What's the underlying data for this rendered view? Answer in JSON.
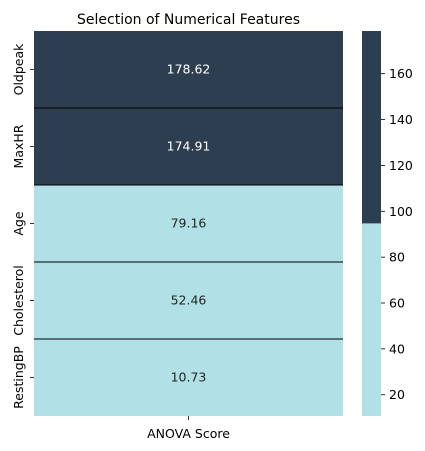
{
  "chart_data": {
    "type": "heatmap",
    "title": "Selection of Numerical Features",
    "xlabel": "",
    "ylabel": "",
    "columns": [
      "ANOVA Score"
    ],
    "rows": [
      "Oldpeak",
      "MaxHR",
      "Age",
      "Cholesterol",
      "RestingBP"
    ],
    "values": [
      178.62,
      174.91,
      79.16,
      52.46,
      10.73
    ],
    "value_labels": [
      "178.62",
      "174.91",
      "79.16",
      "52.46",
      "10.73"
    ],
    "colormap": {
      "type": "two-color",
      "low_color": "#b1e0e6",
      "high_color": "#2c3e50",
      "threshold": 94.7,
      "vmin": 10.73,
      "vmax": 178.62
    },
    "colorbar": {
      "ticks": [
        20,
        40,
        60,
        80,
        100,
        120,
        140,
        160
      ],
      "tick_labels": [
        "20",
        "40",
        "60",
        "80",
        "100",
        "120",
        "140",
        "160"
      ]
    },
    "grid_lines": true,
    "grid_line_color": "#000000",
    "low_text_color": "#262626",
    "high_text_color": "#ffffff"
  }
}
